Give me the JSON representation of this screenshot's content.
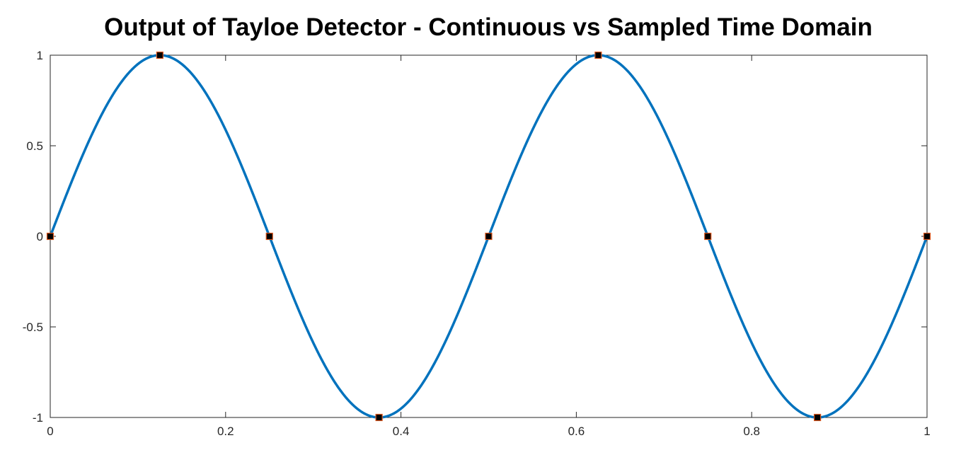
{
  "chart_data": {
    "type": "line",
    "title": "Output of Tayloe Detector - Continuous vs Sampled Time Domain",
    "xlim": [
      0,
      1
    ],
    "ylim": [
      -1,
      1
    ],
    "x_ticks": [
      0,
      0.2,
      0.4,
      0.6,
      0.8,
      1
    ],
    "x_tick_labels": [
      "0",
      "0.2",
      "0.4",
      "0.6",
      "0.8",
      "1"
    ],
    "y_ticks": [
      1,
      0.5,
      0,
      -0.5,
      -1
    ],
    "y_tick_labels": [
      "1",
      "0.5",
      "0",
      "-0.5",
      "-1"
    ],
    "grid": false,
    "series": [
      {
        "kind": "continuous",
        "function": "sin(2*pi*2*t)",
        "t_range": [
          0,
          1
        ],
        "color": "#0072BD"
      },
      {
        "kind": "samples",
        "marker": "square",
        "marker_fill": "#000000",
        "marker_edge": "#D95319",
        "x": [
          0,
          0.125,
          0.25,
          0.375,
          0.5,
          0.625,
          0.75,
          0.875,
          1
        ],
        "y": [
          0,
          1,
          0,
          -1,
          0,
          1,
          0,
          -1,
          0
        ]
      }
    ]
  }
}
